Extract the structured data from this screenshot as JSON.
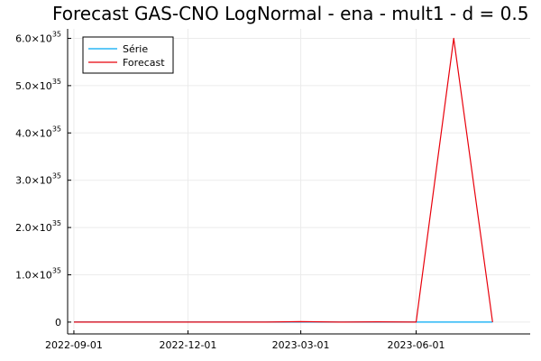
{
  "chart_data": {
    "type": "line",
    "title": "Forecast GAS-CNO LogNormal - ena - mult1 - d = 0.5",
    "xlabel": "",
    "ylabel": "",
    "x_axis": {
      "type": "date",
      "range": [
        "2022-08-27",
        "2023-08-31"
      ],
      "ticks": [
        "2022-09-01",
        "2022-12-01",
        "2023-03-01",
        "2023-06-01"
      ]
    },
    "y_axis": {
      "range": [
        -2.5e+34,
        6.2e+35
      ],
      "ticks": [
        {
          "value": 0,
          "mantissa": "0",
          "exponent": ""
        },
        {
          "value": 1e+35,
          "mantissa": "1.0×10",
          "exponent": "35"
        },
        {
          "value": 2e+35,
          "mantissa": "2.0×10",
          "exponent": "35"
        },
        {
          "value": 3e+35,
          "mantissa": "3.0×10",
          "exponent": "35"
        },
        {
          "value": 4e+35,
          "mantissa": "4.0×10",
          "exponent": "35"
        },
        {
          "value": 5e+35,
          "mantissa": "5.0×10",
          "exponent": "35"
        },
        {
          "value": 6e+35,
          "mantissa": "6.0×10",
          "exponent": "35"
        }
      ]
    },
    "grid": true,
    "legend_position": "top-left",
    "series": [
      {
        "name": "Série",
        "color": "#00a9f4",
        "points": [
          {
            "x": "2022-09-01",
            "y": 0
          },
          {
            "x": "2022-10-01",
            "y": 0
          },
          {
            "x": "2022-11-01",
            "y": 0
          },
          {
            "x": "2022-12-01",
            "y": 0
          },
          {
            "x": "2023-01-01",
            "y": 0
          },
          {
            "x": "2023-02-01",
            "y": 0
          },
          {
            "x": "2023-03-01",
            "y": 0
          },
          {
            "x": "2023-04-01",
            "y": 0
          },
          {
            "x": "2023-05-01",
            "y": 0
          },
          {
            "x": "2023-06-01",
            "y": 0
          },
          {
            "x": "2023-07-01",
            "y": 0
          },
          {
            "x": "2023-08-01",
            "y": 0
          }
        ]
      },
      {
        "name": "Forecast",
        "color": "#e8000b",
        "points": [
          {
            "x": "2022-09-01",
            "y": 0
          },
          {
            "x": "2022-10-01",
            "y": 0
          },
          {
            "x": "2022-11-01",
            "y": 0
          },
          {
            "x": "2022-12-01",
            "y": 0
          },
          {
            "x": "2023-01-01",
            "y": 0
          },
          {
            "x": "2023-02-01",
            "y": 0
          },
          {
            "x": "2023-03-01",
            "y": 1e+33
          },
          {
            "x": "2023-04-01",
            "y": 0
          },
          {
            "x": "2023-05-01",
            "y": 5e+32
          },
          {
            "x": "2023-06-01",
            "y": 0
          },
          {
            "x": "2023-07-01",
            "y": 6e+35
          },
          {
            "x": "2023-08-01",
            "y": 0
          }
        ]
      }
    ]
  }
}
